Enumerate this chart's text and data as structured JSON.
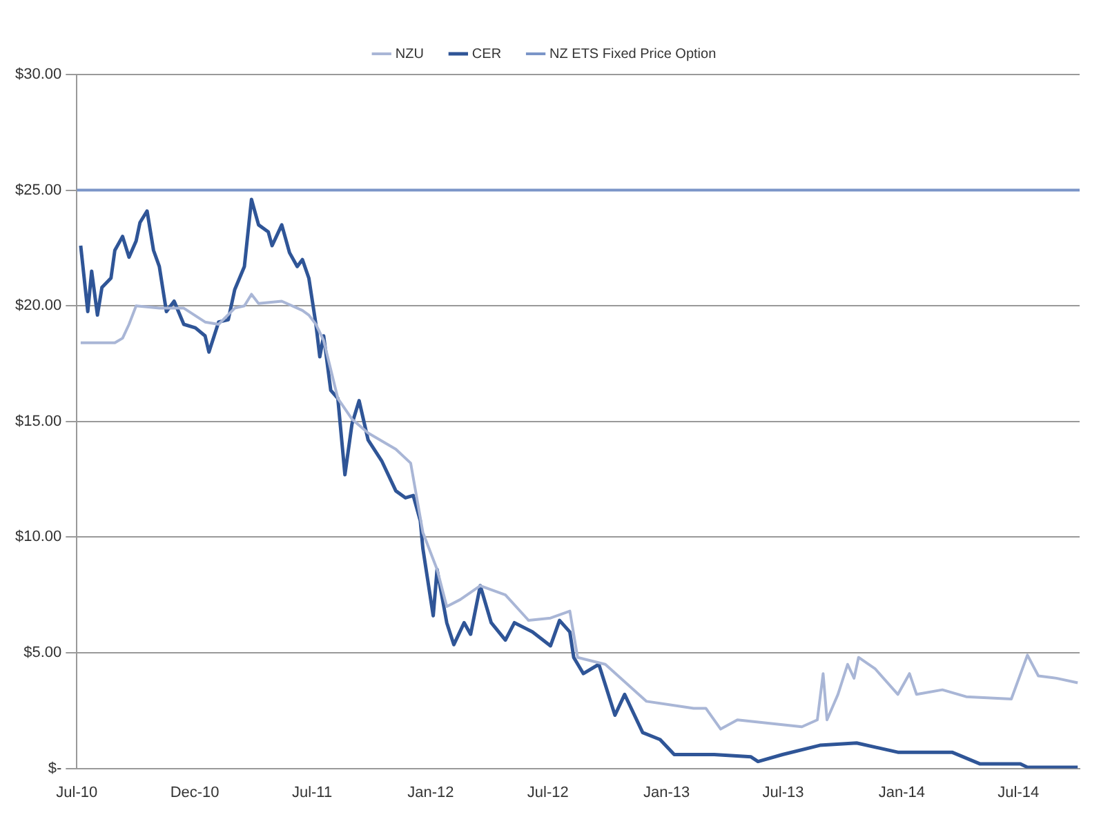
{
  "chart_data": {
    "type": "line",
    "x": [
      "2010-07-07",
      "2010-07-18",
      "2010-07-24",
      "2010-08-02",
      "2010-08-09",
      "2010-08-23",
      "2010-08-29",
      "2010-09-10",
      "2010-09-20",
      "2010-10-01",
      "2010-10-07",
      "2010-10-18",
      "2010-10-28",
      "2010-11-06",
      "2010-11-17",
      "2010-11-29",
      "2010-12-14",
      "2011-01-01",
      "2011-01-16",
      "2011-01-22",
      "2011-02-06",
      "2011-02-21",
      "2011-03-03",
      "2011-03-18",
      "2011-03-29",
      "2011-04-09",
      "2011-04-24",
      "2011-04-30",
      "2011-05-15",
      "2011-05-27",
      "2011-06-08",
      "2011-06-16",
      "2011-06-26",
      "2011-07-07",
      "2011-07-13",
      "2011-07-19",
      "2011-07-30",
      "2011-08-10",
      "2011-08-21",
      "2011-09-01",
      "2011-09-12",
      "2011-09-26",
      "2011-10-17",
      "2011-11-08",
      "2011-11-23",
      "2011-12-05",
      "2011-12-16",
      "2011-12-20",
      "2012-01-05",
      "2012-01-11",
      "2012-01-26",
      "2012-02-06",
      "2012-02-22",
      "2012-03-03",
      "2012-03-18",
      "2012-04-04",
      "2012-04-26",
      "2012-05-10",
      "2012-06-07",
      "2012-07-05",
      "2012-07-19",
      "2012-08-04",
      "2012-08-10",
      "2012-08-25",
      "2012-09-18",
      "2012-10-13",
      "2012-10-28",
      "2012-11-25",
      "2012-12-22",
      "2013-01-13",
      "2013-03-16",
      "2013-05-12",
      "2013-05-23",
      "2013-06-30",
      "2013-08-27",
      "2013-10-23",
      "2013-12-26",
      "2014-03-20",
      "2014-05-02",
      "2014-07-04",
      "2014-07-15",
      "2014-10-01"
    ],
    "series": [
      {
        "name": "NZU",
        "color": "#a9b6d6",
        "x": [
          "2010-07-07",
          "2010-08-29",
          "2010-09-10",
          "2010-09-20",
          "2010-10-01",
          "2010-11-06",
          "2010-12-14",
          "2011-01-16",
          "2011-02-06",
          "2011-03-03",
          "2011-03-18",
          "2011-03-29",
          "2011-04-09",
          "2011-05-15",
          "2011-06-16",
          "2011-06-26",
          "2011-07-07",
          "2011-07-19",
          "2011-08-10",
          "2011-09-01",
          "2011-09-26",
          "2011-11-08",
          "2011-12-01",
          "2011-12-20",
          "2012-01-11",
          "2012-01-26",
          "2012-02-16",
          "2012-03-18",
          "2012-04-26",
          "2012-06-01",
          "2012-07-05",
          "2012-08-04",
          "2012-08-16",
          "2012-09-28",
          "2012-11-03",
          "2012-12-01",
          "2013-02-12",
          "2013-03-03",
          "2013-03-26",
          "2013-04-21",
          "2013-07-30",
          "2013-08-23",
          "2013-09-01",
          "2013-09-07",
          "2013-09-24",
          "2013-10-09",
          "2013-10-19",
          "2013-10-26",
          "2013-11-21",
          "2013-12-26",
          "2014-01-13",
          "2014-01-24",
          "2014-03-05",
          "2014-04-11",
          "2014-06-20",
          "2014-07-15",
          "2014-08-01",
          "2014-08-29",
          "2014-10-01"
        ],
        "values": [
          18.4,
          18.4,
          18.6,
          19.2,
          20.0,
          19.9,
          19.9,
          19.3,
          19.2,
          19.9,
          20.0,
          20.5,
          20.1,
          20.2,
          19.8,
          19.6,
          19.2,
          18.5,
          16.0,
          15.1,
          14.5,
          13.8,
          13.2,
          10.2,
          8.6,
          7.0,
          7.3,
          7.9,
          7.5,
          6.4,
          6.5,
          6.8,
          4.8,
          4.5,
          3.6,
          2.9,
          2.6,
          2.6,
          1.7,
          2.1,
          1.8,
          2.1,
          4.1,
          2.1,
          3.2,
          4.5,
          3.9,
          4.8,
          4.3,
          3.2,
          4.1,
          3.2,
          3.4,
          3.1,
          3.0,
          4.9,
          4.0,
          3.9,
          3.7
        ]
      },
      {
        "name": "CER",
        "color": "#2f5597",
        "values": [
          22.6,
          19.75,
          21.5,
          19.6,
          20.8,
          21.2,
          22.4,
          23.0,
          22.1,
          22.8,
          23.6,
          24.1,
          22.4,
          21.7,
          19.75,
          20.2,
          19.2,
          19.05,
          18.7,
          18.0,
          19.3,
          19.4,
          20.7,
          21.7,
          24.6,
          23.5,
          23.2,
          22.6,
          23.5,
          22.3,
          21.7,
          22.0,
          21.2,
          19.2,
          17.8,
          18.7,
          16.35,
          16.0,
          12.7,
          14.9,
          15.9,
          14.2,
          13.3,
          12.0,
          11.7,
          11.8,
          10.7,
          9.5,
          6.6,
          8.6,
          6.3,
          5.35,
          6.3,
          5.8,
          7.9,
          6.3,
          5.55,
          6.3,
          5.9,
          5.3,
          6.4,
          5.9,
          4.8,
          4.1,
          4.5,
          2.3,
          3.2,
          1.55,
          1.25,
          0.6,
          0.6,
          0.5,
          0.3,
          0.6,
          1.0,
          1.1,
          0.7,
          0.7,
          0.2,
          0.2,
          0.05,
          0.05
        ]
      },
      {
        "name": "NZ ETS Fixed Price Option",
        "color": "#7b95c8",
        "x": [
          "2010-07-01",
          "2014-10-04"
        ],
        "values": [
          25,
          25
        ]
      }
    ],
    "xlim": [
      "2010-07-01",
      "2014-10-04"
    ],
    "xticks": [
      {
        "value": "2010-07-01",
        "label": "Jul-10"
      },
      {
        "value": "2010-12-31",
        "label": "Dec-10"
      },
      {
        "value": "2011-07-01",
        "label": "Jul-11"
      },
      {
        "value": "2012-01-01",
        "label": "Jan-12"
      },
      {
        "value": "2012-07-01",
        "label": "Jul-12"
      },
      {
        "value": "2013-01-01",
        "label": "Jan-13"
      },
      {
        "value": "2013-07-01",
        "label": "Jul-13"
      },
      {
        "value": "2014-01-01",
        "label": "Jan-14"
      },
      {
        "value": "2014-07-01",
        "label": "Jul-14"
      }
    ],
    "ylim": [
      0,
      30
    ],
    "yticks": [
      {
        "value": 0,
        "label": "$-"
      },
      {
        "value": 5,
        "label": "$5.00"
      },
      {
        "value": 10,
        "label": "$10.00"
      },
      {
        "value": 15,
        "label": "$15.00"
      },
      {
        "value": 20,
        "label": "$20.00"
      },
      {
        "value": 25,
        "label": "$25.00"
      },
      {
        "value": 30,
        "label": "$30.00"
      }
    ],
    "grid": "y",
    "legend": "top",
    "marker": "none",
    "line_style": "solid"
  }
}
